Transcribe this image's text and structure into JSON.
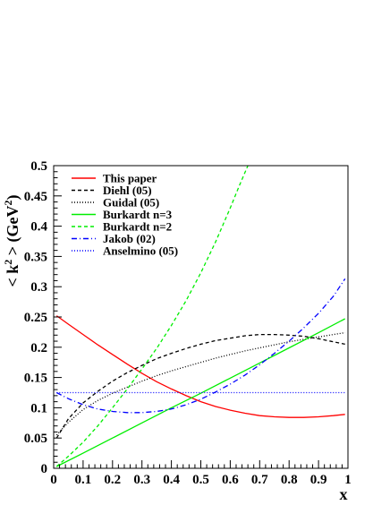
{
  "chart_data": {
    "type": "line",
    "xlabel": "x",
    "ylabel_parts": [
      "< k",
      "2",
      " > (GeV",
      "2",
      ")"
    ],
    "xlim": [
      0,
      1
    ],
    "ylim": [
      0,
      0.5
    ],
    "x_ticks": [
      0,
      0.1,
      0.2,
      0.3,
      0.4,
      0.5,
      0.6,
      0.7,
      0.8,
      0.9,
      1
    ],
    "x_tick_labels": [
      "0",
      "0.1",
      "0.2",
      "0.3",
      "0.4",
      "0.5",
      "0.6",
      "0.7",
      "0.8",
      "0.9",
      "1"
    ],
    "y_ticks": [
      0,
      0.05,
      0.1,
      0.15,
      0.2,
      0.25,
      0.3,
      0.35,
      0.4,
      0.45,
      0.5
    ],
    "y_tick_labels": [
      "0",
      "0.05",
      "0.1",
      "0.15",
      "0.2",
      "0.25",
      "0.3",
      "0.35",
      "0.4",
      "0.45",
      "0.5"
    ],
    "legend_position": "top-left",
    "series": [
      {
        "name": "This paper",
        "color": "#ff0000",
        "style": "solid",
        "x": [
          0.01,
          0.05,
          0.1,
          0.15,
          0.2,
          0.25,
          0.3,
          0.35,
          0.4,
          0.45,
          0.5,
          0.55,
          0.6,
          0.65,
          0.7,
          0.75,
          0.8,
          0.85,
          0.9,
          0.95,
          0.99
        ],
        "y": [
          0.252,
          0.238,
          0.221,
          0.204,
          0.188,
          0.172,
          0.157,
          0.143,
          0.131,
          0.12,
          0.11,
          0.102,
          0.096,
          0.091,
          0.087,
          0.085,
          0.084,
          0.084,
          0.085,
          0.087,
          0.089
        ]
      },
      {
        "name": "Diehl (05)",
        "color": "#000000",
        "style": "dashed",
        "x": [
          0.01,
          0.05,
          0.1,
          0.15,
          0.2,
          0.25,
          0.3,
          0.35,
          0.4,
          0.45,
          0.5,
          0.55,
          0.6,
          0.65,
          0.7,
          0.75,
          0.8,
          0.85,
          0.9,
          0.95,
          0.99
        ],
        "y": [
          0.05,
          0.082,
          0.108,
          0.127,
          0.144,
          0.158,
          0.17,
          0.181,
          0.19,
          0.198,
          0.205,
          0.211,
          0.215,
          0.219,
          0.221,
          0.221,
          0.22,
          0.218,
          0.214,
          0.209,
          0.205
        ]
      },
      {
        "name": "Guidal (05)",
        "color": "#000000",
        "style": "dotted",
        "x": [
          0.01,
          0.05,
          0.1,
          0.15,
          0.2,
          0.25,
          0.3,
          0.35,
          0.4,
          0.45,
          0.5,
          0.55,
          0.6,
          0.65,
          0.7,
          0.75,
          0.8,
          0.85,
          0.9,
          0.95,
          0.99
        ],
        "y": [
          0.055,
          0.076,
          0.097,
          0.112,
          0.124,
          0.134,
          0.144,
          0.153,
          0.161,
          0.168,
          0.175,
          0.182,
          0.188,
          0.194,
          0.199,
          0.204,
          0.209,
          0.213,
          0.217,
          0.221,
          0.224
        ]
      },
      {
        "name": "Burkardt n=3",
        "color": "#00ee00",
        "style": "solid",
        "x": [
          0.01,
          0.1,
          0.2,
          0.3,
          0.4,
          0.5,
          0.6,
          0.7,
          0.8,
          0.9,
          0.99
        ],
        "y": [
          0.003,
          0.025,
          0.05,
          0.075,
          0.1,
          0.124,
          0.149,
          0.174,
          0.199,
          0.224,
          0.247
        ]
      },
      {
        "name": "Burkardt n=2",
        "color": "#00ee00",
        "style": "dashed",
        "x": [
          0.01,
          0.05,
          0.1,
          0.15,
          0.2,
          0.25,
          0.3,
          0.35,
          0.4,
          0.45,
          0.5,
          0.55,
          0.6,
          0.63,
          0.66,
          0.68
        ],
        "y": [
          0.003,
          0.02,
          0.043,
          0.07,
          0.1,
          0.131,
          0.164,
          0.198,
          0.236,
          0.277,
          0.323,
          0.374,
          0.43,
          0.466,
          0.5,
          0.53
        ]
      },
      {
        "name": "Jakob (02)",
        "color": "#0000ff",
        "style": "dashdot",
        "x": [
          0.01,
          0.05,
          0.1,
          0.15,
          0.2,
          0.25,
          0.3,
          0.35,
          0.4,
          0.45,
          0.5,
          0.55,
          0.6,
          0.65,
          0.7,
          0.75,
          0.8,
          0.85,
          0.9,
          0.95,
          0.99
        ],
        "y": [
          0.125,
          0.115,
          0.105,
          0.098,
          0.094,
          0.092,
          0.092,
          0.094,
          0.098,
          0.105,
          0.114,
          0.126,
          0.139,
          0.154,
          0.171,
          0.19,
          0.21,
          0.232,
          0.256,
          0.284,
          0.313
        ]
      },
      {
        "name": "Anselmino (05)",
        "color": "#0000ff",
        "style": "dotted",
        "x": [
          0.01,
          0.99
        ],
        "y": [
          0.125,
          0.125
        ]
      }
    ]
  }
}
